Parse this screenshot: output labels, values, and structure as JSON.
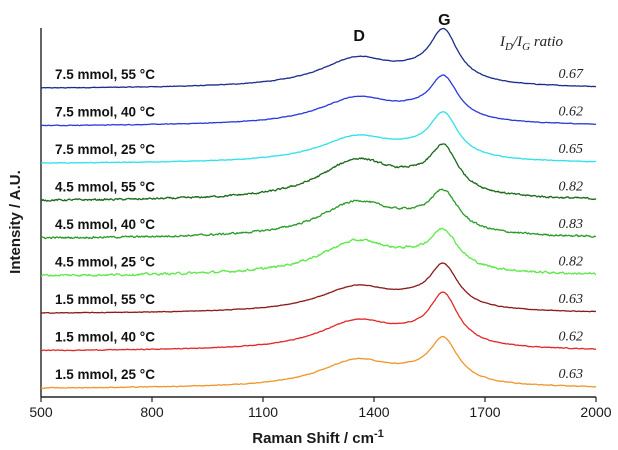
{
  "chart_data": {
    "type": "line",
    "xlabel": "Raman Shift / cm",
    "xlabel_superscript": "-1",
    "ylabel": "Intensity / A.U.",
    "xlim": [
      500,
      2000
    ],
    "xticks": [
      "500",
      "800",
      "1100",
      "1400",
      "1700",
      "2000"
    ],
    "grid": false,
    "peak_labels": [
      {
        "text": "D",
        "x": 1360
      },
      {
        "text": "G",
        "x": 1590
      }
    ],
    "ratio_header": {
      "main": "I",
      "sub_d": "D",
      "slash": "/",
      "sub_g": "G",
      "rest": " ratio"
    },
    "series": [
      {
        "name": "7.5 mmol, 55 °C",
        "ratio": "0.67",
        "color": "#1a2c8c",
        "offset": 8,
        "d_height": 0.45,
        "g_height": 0.82,
        "noise": 0.004
      },
      {
        "name": "7.5 mmol, 40 °C",
        "ratio": "0.62",
        "color": "#2a3ad8",
        "offset": 7,
        "d_height": 0.42,
        "g_height": 0.68,
        "noise": 0.004
      },
      {
        "name": "7.5 mmol, 25 °C",
        "ratio": "0.65",
        "color": "#2ee0ec",
        "offset": 6,
        "d_height": 0.4,
        "g_height": 0.7,
        "noise": 0.004
      },
      {
        "name": "4.5 mmol, 55 °C",
        "ratio": "0.82",
        "color": "#1b6a1b",
        "offset": 5,
        "d_height": 0.62,
        "g_height": 0.72,
        "noise": 0.012
      },
      {
        "name": "4.5 mmol, 40 °C",
        "ratio": "0.83",
        "color": "#2a9a2a",
        "offset": 4,
        "d_height": 0.55,
        "g_height": 0.62,
        "noise": 0.012
      },
      {
        "name": "4.5 mmol, 25 °C",
        "ratio": "0.82",
        "color": "#5ee84a",
        "offset": 3,
        "d_height": 0.52,
        "g_height": 0.6,
        "noise": 0.014
      },
      {
        "name": "1.5 mmol, 55 °C",
        "ratio": "0.63",
        "color": "#8c1a1a",
        "offset": 2,
        "d_height": 0.4,
        "g_height": 0.68,
        "noise": 0.004
      },
      {
        "name": "1.5 mmol, 40 °C",
        "ratio": "0.62",
        "color": "#e02a2a",
        "offset": 1,
        "d_height": 0.45,
        "g_height": 0.8,
        "noise": 0.005
      },
      {
        "name": "1.5 mmol, 25 °C",
        "ratio": "0.63",
        "color": "#f0962a",
        "offset": 0,
        "d_height": 0.42,
        "g_height": 0.7,
        "noise": 0.005
      }
    ]
  }
}
